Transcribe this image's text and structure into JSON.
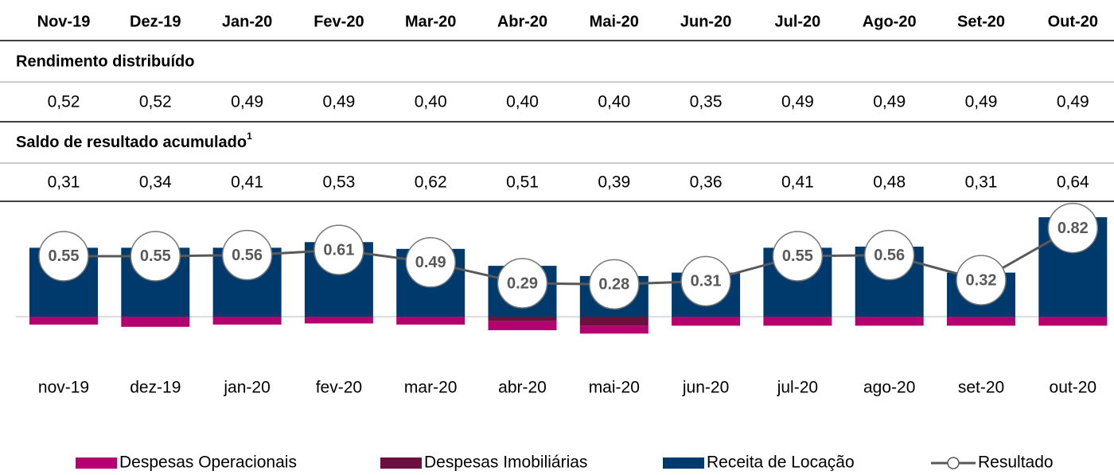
{
  "table": {
    "columns": [
      "Nov-19",
      "Dez-19",
      "Jan-20",
      "Fev-20",
      "Mar-20",
      "Abr-20",
      "Mai-20",
      "Jun-20",
      "Jul-20",
      "Ago-20",
      "Set-20",
      "Out-20"
    ],
    "sections": [
      {
        "title": "Rendimento distribuído",
        "values": [
          "0,52",
          "0,52",
          "0,49",
          "0,49",
          "0,40",
          "0,40",
          "0,40",
          "0,35",
          "0,49",
          "0,49",
          "0,49",
          "0,49"
        ]
      },
      {
        "title": "Saldo de resultado acumulado",
        "note": "1",
        "values": [
          "0,31",
          "0,34",
          "0,41",
          "0,53",
          "0,62",
          "0,51",
          "0,39",
          "0,36",
          "0,41",
          "0,48",
          "0,31",
          "0,64"
        ]
      }
    ]
  },
  "chart_data": {
    "type": "bar",
    "categories": [
      "nov-19",
      "dez-19",
      "jan-20",
      "fev-20",
      "mar-20",
      "abr-20",
      "mai-20",
      "jun-20",
      "jul-20",
      "ago-20",
      "set-20",
      "out-20"
    ],
    "series": [
      {
        "name": "Despesas Operacionais",
        "color": "#b5006f",
        "values": [
          -0.07,
          -0.09,
          -0.07,
          -0.06,
          -0.07,
          -0.08,
          -0.07,
          -0.08,
          -0.08,
          -0.08,
          -0.08,
          -0.08
        ]
      },
      {
        "name": "Despesas Imobiliárias",
        "color": "#6d0f3f",
        "values": [
          0,
          0,
          0,
          0,
          0,
          -0.04,
          -0.08,
          0,
          0,
          0,
          0,
          0
        ]
      },
      {
        "name": "Receita de Locação",
        "color": "#003a6c",
        "values": [
          0.61,
          0.61,
          0.61,
          0.66,
          0.6,
          0.45,
          0.36,
          0.39,
          0.61,
          0.62,
          0.39,
          0.88
        ]
      },
      {
        "name": "Resultado",
        "type": "line",
        "color": "#595959",
        "values": [
          0.55,
          0.55,
          0.56,
          0.61,
          0.49,
          0.29,
          0.28,
          0.31,
          0.55,
          0.56,
          0.32,
          0.82
        ]
      }
    ]
  }
}
